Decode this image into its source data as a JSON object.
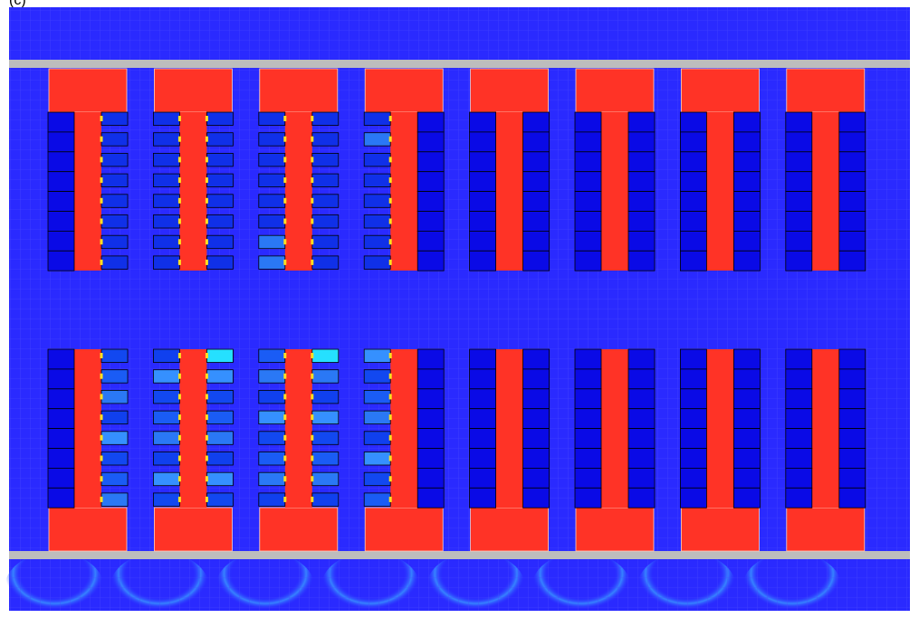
{
  "panel_label": "(c)"
}
